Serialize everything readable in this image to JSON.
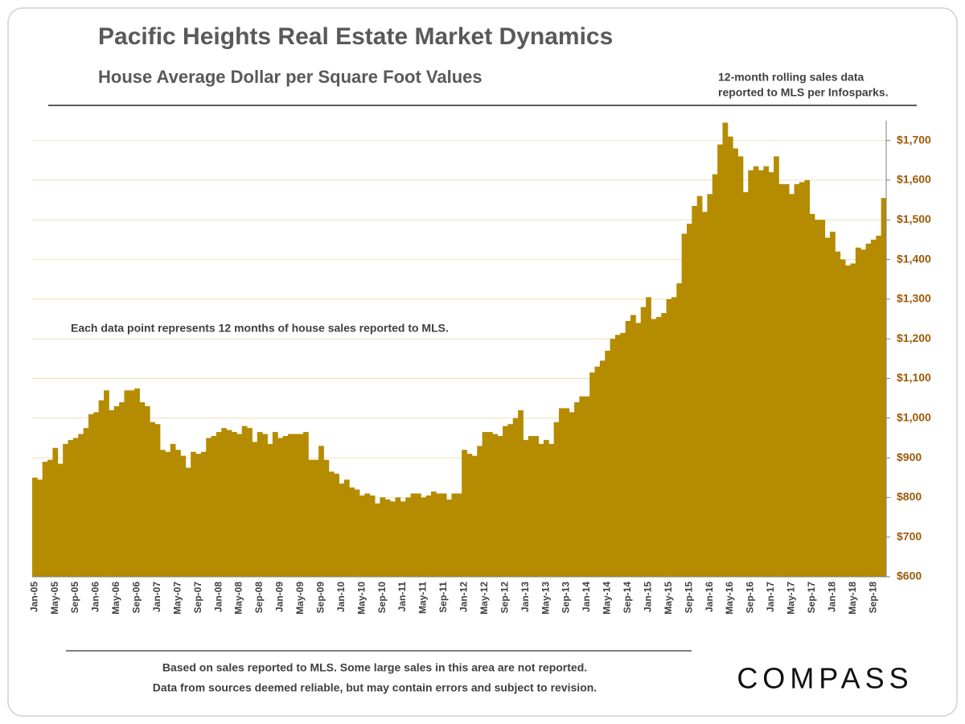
{
  "chart_data": {
    "type": "bar",
    "title": "Pacific Heights Real Estate Market Dynamics",
    "subtitle": "House Average Dollar  per Square Foot Values",
    "source_note": [
      "12-month  rolling sales data",
      "reported to MLS per Infosparks."
    ],
    "annotation": "Each data point represents 12 months  of  house sales reported to MLS.",
    "footer": [
      "Based on sales reported to MLS. Some large sales in this area are not reported.",
      "Data from sources deemed reliable, but may contain errors and subject to revision."
    ],
    "brand": "COMPASS",
    "color": "#b58b00",
    "grid": true,
    "ylim": [
      600,
      1750
    ],
    "yticks": [
      {
        "value": 600,
        "label": "$600"
      },
      {
        "value": 700,
        "label": "$700"
      },
      {
        "value": 800,
        "label": "$800"
      },
      {
        "value": 900,
        "label": "$900"
      },
      {
        "value": 1000,
        "label": "$1,000"
      },
      {
        "value": 1100,
        "label": "$1,100"
      },
      {
        "value": 1200,
        "label": "$1,200"
      },
      {
        "value": 1300,
        "label": "$1,300"
      },
      {
        "value": 1400,
        "label": "$1,400"
      },
      {
        "value": 1500,
        "label": "$1,500"
      },
      {
        "value": 1600,
        "label": "$1,600"
      },
      {
        "value": 1700,
        "label": "$1,700"
      }
    ],
    "categories": [
      "Jan-05",
      null,
      null,
      null,
      "May-05",
      null,
      null,
      null,
      "Sep-05",
      null,
      null,
      null,
      "Jan-06",
      null,
      null,
      null,
      "May-06",
      null,
      null,
      null,
      "Sep-06",
      null,
      null,
      null,
      "Jan-07",
      null,
      null,
      null,
      "May-07",
      null,
      null,
      null,
      "Sep-07",
      null,
      null,
      null,
      "Jan-08",
      null,
      null,
      null,
      "May-08",
      null,
      null,
      null,
      "Sep-08",
      null,
      null,
      null,
      "Jan-09",
      null,
      null,
      null,
      "May-09",
      null,
      null,
      null,
      "Sep-09",
      null,
      null,
      null,
      "Jan-10",
      null,
      null,
      null,
      "May-10",
      null,
      null,
      null,
      "Sep-10",
      null,
      null,
      null,
      "Jan-11",
      null,
      null,
      null,
      "May-11",
      null,
      null,
      null,
      "Sep-11",
      null,
      null,
      null,
      "Jan-12",
      null,
      null,
      null,
      "May-12",
      null,
      null,
      null,
      "Sep-12",
      null,
      null,
      null,
      "Jan-13",
      null,
      null,
      null,
      "May-13",
      null,
      null,
      null,
      "Sep-13",
      null,
      null,
      null,
      "Jan-14",
      null,
      null,
      null,
      "May-14",
      null,
      null,
      null,
      "Sep-14",
      null,
      null,
      null,
      "Jan-15",
      null,
      null,
      null,
      "May-15",
      null,
      null,
      null,
      "Sep-15",
      null,
      null,
      null,
      "Jan-16",
      null,
      null,
      null,
      "May-16",
      null,
      null,
      null,
      "Sep-16",
      null,
      null,
      null,
      "Jan-17",
      null,
      null,
      null,
      "May-17",
      null,
      null,
      null,
      "Sep-17",
      null,
      null,
      null,
      "Jan-18",
      null,
      null,
      null,
      "May-18",
      null,
      null,
      null,
      "Sep-18",
      null,
      null
    ],
    "values": [
      850,
      845,
      890,
      895,
      925,
      885,
      935,
      945,
      950,
      960,
      975,
      1010,
      1015,
      1045,
      1070,
      1020,
      1030,
      1040,
      1070,
      1070,
      1075,
      1040,
      1030,
      990,
      985,
      920,
      915,
      935,
      920,
      905,
      875,
      915,
      910,
      915,
      950,
      955,
      965,
      975,
      970,
      965,
      960,
      980,
      975,
      940,
      965,
      960,
      935,
      965,
      950,
      955,
      960,
      960,
      960,
      965,
      895,
      895,
      930,
      895,
      865,
      860,
      835,
      845,
      825,
      820,
      805,
      810,
      805,
      785,
      800,
      795,
      790,
      800,
      790,
      800,
      810,
      810,
      800,
      805,
      815,
      810,
      810,
      795,
      810,
      810,
      920,
      910,
      905,
      930,
      965,
      965,
      960,
      955,
      980,
      985,
      1000,
      1020,
      945,
      955,
      955,
      935,
      945,
      935,
      990,
      1025,
      1025,
      1015,
      1040,
      1055,
      1055,
      1115,
      1130,
      1145,
      1170,
      1200,
      1210,
      1215,
      1245,
      1260,
      1240,
      1280,
      1305,
      1250,
      1255,
      1265,
      1300,
      1305,
      1340,
      1465,
      1490,
      1535,
      1560,
      1520,
      1565,
      1615,
      1690,
      1745,
      1710,
      1680,
      1660,
      1570,
      1625,
      1635,
      1625,
      1635,
      1620,
      1660,
      1590,
      1590,
      1565,
      1590,
      1595,
      1600,
      1515,
      1500,
      1500,
      1455,
      1470,
      1420,
      1400,
      1385,
      1390,
      1430,
      1425,
      1440,
      1450,
      1460,
      1555
    ]
  }
}
